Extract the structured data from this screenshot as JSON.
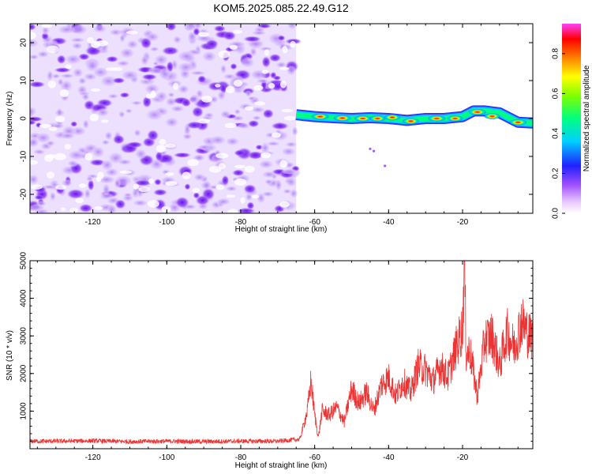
{
  "title": "KOM5.2025.085.22.49.G12",
  "colors": {
    "snr_line": "#ee3333",
    "noise_purple": "#7a2cf0",
    "frame": "#000000"
  },
  "chart_data": [
    {
      "type": "heatmap",
      "xlabel": "Height of straight line (km)",
      "ylabel": "Frequency (Hz)",
      "xlim": [
        -137,
        -1
      ],
      "ylim": [
        -25,
        25
      ],
      "x_ticks": [
        -120,
        -100,
        -80,
        -60,
        -40,
        -20
      ],
      "y_ticks": [
        -20,
        -10,
        0,
        10,
        20
      ],
      "noise_region_x": [
        -137,
        -65
      ],
      "colorbar": {
        "label": "Normalized spectral amplitude",
        "range": [
          0,
          0.95
        ],
        "ticks": [
          "0.0",
          "0.2",
          "0.4",
          "0.6",
          "0.8"
        ],
        "colormap": "rainbow"
      },
      "signal_track": {
        "x": [
          -65,
          -60,
          -55,
          -50,
          -45,
          -40,
          -35,
          -30,
          -25,
          -20,
          -17,
          -14,
          -10,
          -5,
          -1
        ],
        "freq": [
          1,
          0.5,
          0.2,
          0,
          0.2,
          0,
          -0.5,
          0,
          0,
          0.5,
          2,
          2,
          1.5,
          -1,
          -1.2
        ]
      },
      "signal_blobs": [
        {
          "x": -58.5,
          "f": 0.5,
          "a": 0.95
        },
        {
          "x": -52.5,
          "f": 0.1,
          "a": 0.95
        },
        {
          "x": -47,
          "f": 0,
          "a": 0.9
        },
        {
          "x": -43,
          "f": 0,
          "a": 0.85
        },
        {
          "x": -39,
          "f": 0.3,
          "a": 0.85
        },
        {
          "x": -34,
          "f": -0.7,
          "a": 0.9
        },
        {
          "x": -27,
          "f": 0,
          "a": 0.95
        },
        {
          "x": -22,
          "f": 0,
          "a": 0.8
        },
        {
          "x": -16,
          "f": 1.7,
          "a": 0.95
        },
        {
          "x": -12,
          "f": 0.6,
          "a": 0.85
        },
        {
          "x": -5,
          "f": -1.0,
          "a": 0.95
        }
      ]
    },
    {
      "type": "line",
      "xlabel": "Height of straight line (km)",
      "ylabel": "SNR (10 * v/v)",
      "xlim": [
        -137,
        -1
      ],
      "ylim": [
        0,
        5000
      ],
      "x_ticks": [
        -120,
        -100,
        -80,
        -60,
        -40,
        -20
      ],
      "y_ticks": [
        1000,
        2000,
        3000,
        4000,
        5000
      ],
      "series": [
        {
          "x": [
            -137,
            -130,
            -120,
            -110,
            -100,
            -90,
            -80,
            -70,
            -64,
            -62,
            -61,
            -60,
            -59,
            -58,
            -56,
            -54,
            -52,
            -50,
            -48,
            -46,
            -44,
            -42,
            -40,
            -38,
            -36,
            -34,
            -32,
            -30,
            -28,
            -26,
            -24,
            -22,
            -20,
            -19.5,
            -19,
            -18,
            -16,
            -14,
            -12,
            -10,
            -8,
            -6,
            -4,
            -2,
            -1
          ],
          "y": [
            200,
            200,
            210,
            190,
            200,
            190,
            200,
            200,
            250,
            1000,
            1800,
            900,
            300,
            1000,
            900,
            1100,
            700,
            1600,
            1200,
            1500,
            1000,
            1700,
            1900,
            1400,
            1800,
            1500,
            2200,
            2100,
            1800,
            2200,
            1900,
            2600,
            3200,
            5000,
            2500,
            2600,
            1400,
            2900,
            3000,
            2200,
            3100,
            2700,
            3400,
            3000,
            3000
          ]
        }
      ]
    }
  ]
}
